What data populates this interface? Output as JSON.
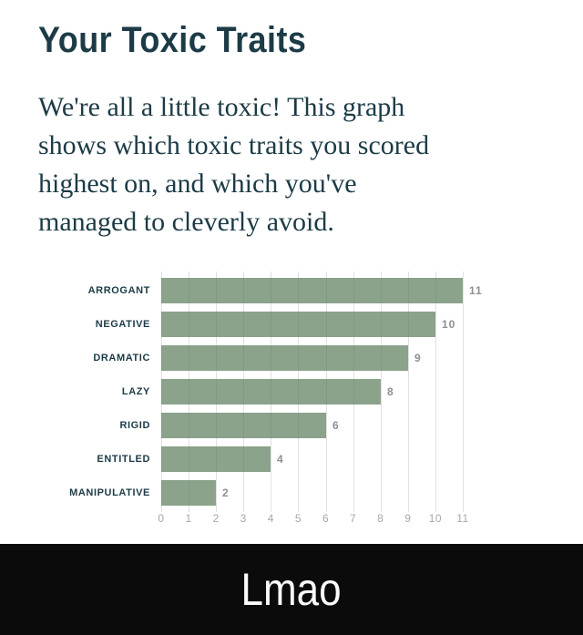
{
  "page": {
    "title": "Your Toxic Traits",
    "description_lines": [
      "We're all a little toxic! This graph",
      "shows which toxic traits you scored",
      "highest on, and which you've",
      "managed to cleverly avoid."
    ],
    "caption": "Lmao"
  },
  "colors": {
    "text_dark": "#1c3b46",
    "bar_green": "#8ba28b",
    "value_gray": "#8f8f8f",
    "axis_gray": "#a8a8a8",
    "gridline": "#dedede",
    "footer_bg": "#0b0b0b",
    "footer_text": "#fafafa",
    "background": "#ffffff"
  },
  "chart_data": {
    "type": "bar",
    "orientation": "horizontal",
    "title": "",
    "categories": [
      "ARROGANT",
      "NEGATIVE",
      "DRAMATIC",
      "LAZY",
      "RIGID",
      "ENTITLED",
      "MANIPULATIVE"
    ],
    "values": [
      11,
      10,
      9,
      8,
      6,
      4,
      2
    ],
    "value_labels": [
      "11",
      "10",
      "9",
      "8",
      "6",
      "4",
      "2"
    ],
    "xlabel": "",
    "ylabel": "",
    "xlim": [
      0,
      11
    ],
    "xticks": [
      0,
      1,
      2,
      3,
      4,
      5,
      6,
      7,
      8,
      9,
      10,
      11
    ],
    "grid": true,
    "legend": false
  }
}
